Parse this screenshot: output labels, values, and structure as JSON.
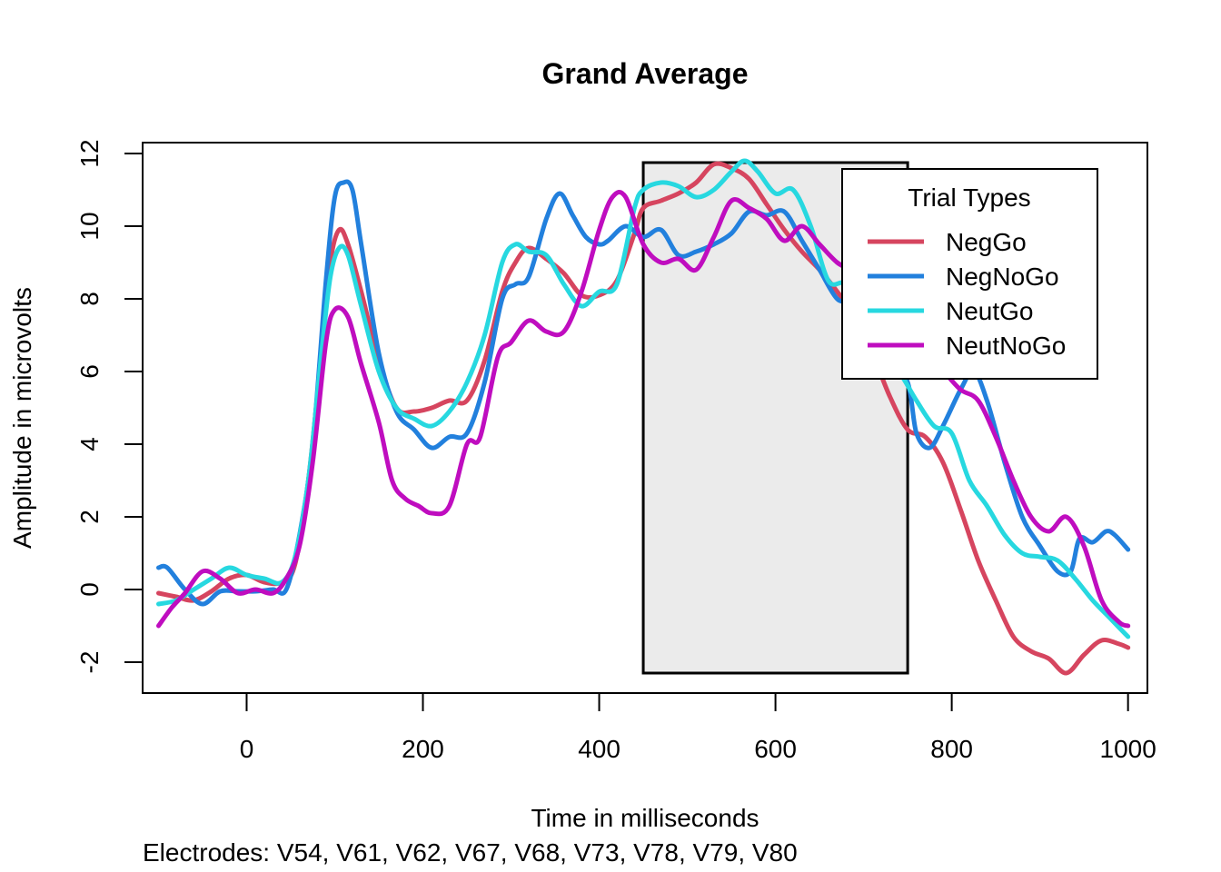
{
  "chart_data": {
    "type": "line",
    "title": "Grand Average",
    "xlabel": "Time in milliseconds",
    "ylabel": "Amplitude in microvolts",
    "caption": "Electrodes: V54, V61, V62, V67, V68, V73, V78, V79, V80",
    "xlim": [
      -100,
      1000
    ],
    "ylim": [
      -2.5,
      12
    ],
    "xticks": [
      0,
      200,
      400,
      600,
      800,
      1000
    ],
    "yticks": [
      -2,
      0,
      2,
      4,
      6,
      8,
      10,
      12
    ],
    "grid": false,
    "highlight_window": {
      "x0": 450,
      "x1": 750,
      "y0": -2.3,
      "y1": 11.75
    },
    "legend": {
      "title": "Trial Types",
      "placement": "top-right"
    },
    "series": [
      {
        "name": "NegGo",
        "color": "#D6455F",
        "points": [
          [
            -100,
            -0.1
          ],
          [
            -80,
            -0.2
          ],
          [
            -60,
            -0.3
          ],
          [
            -40,
            -0.05
          ],
          [
            -20,
            0.3
          ],
          [
            0,
            0.4
          ],
          [
            20,
            0.2
          ],
          [
            40,
            0.2
          ],
          [
            55,
            0.7
          ],
          [
            70,
            3.0
          ],
          [
            85,
            6.5
          ],
          [
            95,
            9.0
          ],
          [
            105,
            9.9
          ],
          [
            115,
            9.5
          ],
          [
            130,
            8.2
          ],
          [
            150,
            6.3
          ],
          [
            170,
            5.0
          ],
          [
            190,
            4.9
          ],
          [
            210,
            5.0
          ],
          [
            230,
            5.2
          ],
          [
            250,
            5.2
          ],
          [
            270,
            6.3
          ],
          [
            290,
            8.2
          ],
          [
            305,
            9.0
          ],
          [
            320,
            9.4
          ],
          [
            340,
            9.1
          ],
          [
            360,
            8.7
          ],
          [
            380,
            8.1
          ],
          [
            400,
            8.1
          ],
          [
            420,
            8.5
          ],
          [
            440,
            9.8
          ],
          [
            450,
            10.5
          ],
          [
            470,
            10.7
          ],
          [
            490,
            10.9
          ],
          [
            510,
            11.2
          ],
          [
            530,
            11.7
          ],
          [
            550,
            11.6
          ],
          [
            570,
            11.3
          ],
          [
            590,
            10.6
          ],
          [
            610,
            9.9
          ],
          [
            630,
            9.3
          ],
          [
            650,
            8.8
          ],
          [
            670,
            8.2
          ],
          [
            690,
            7.5
          ],
          [
            710,
            6.5
          ],
          [
            730,
            5.3
          ],
          [
            750,
            4.4
          ],
          [
            770,
            4.2
          ],
          [
            790,
            3.5
          ],
          [
            810,
            2.2
          ],
          [
            830,
            0.8
          ],
          [
            850,
            -0.3
          ],
          [
            870,
            -1.3
          ],
          [
            890,
            -1.7
          ],
          [
            910,
            -1.9
          ],
          [
            930,
            -2.3
          ],
          [
            950,
            -1.8
          ],
          [
            970,
            -1.4
          ],
          [
            990,
            -1.5
          ],
          [
            1000,
            -1.6
          ]
        ]
      },
      {
        "name": "NegNoGo",
        "color": "#2280DD",
        "points": [
          [
            -100,
            0.6
          ],
          [
            -90,
            0.6
          ],
          [
            -70,
            0.0
          ],
          [
            -50,
            -0.4
          ],
          [
            -30,
            -0.05
          ],
          [
            -10,
            -0.05
          ],
          [
            10,
            -0.05
          ],
          [
            30,
            0.0
          ],
          [
            45,
            0.0
          ],
          [
            60,
            1.5
          ],
          [
            75,
            4.0
          ],
          [
            90,
            8.5
          ],
          [
            100,
            10.8
          ],
          [
            110,
            11.2
          ],
          [
            120,
            11.0
          ],
          [
            130,
            9.5
          ],
          [
            150,
            6.5
          ],
          [
            170,
            4.9
          ],
          [
            190,
            4.4
          ],
          [
            210,
            3.9
          ],
          [
            230,
            4.2
          ],
          [
            250,
            4.3
          ],
          [
            270,
            5.7
          ],
          [
            290,
            8.0
          ],
          [
            305,
            8.4
          ],
          [
            320,
            8.6
          ],
          [
            340,
            10.2
          ],
          [
            355,
            10.9
          ],
          [
            370,
            10.3
          ],
          [
            385,
            9.7
          ],
          [
            400,
            9.5
          ],
          [
            410,
            9.6
          ],
          [
            430,
            10.0
          ],
          [
            450,
            9.7
          ],
          [
            470,
            9.9
          ],
          [
            490,
            9.2
          ],
          [
            510,
            9.3
          ],
          [
            530,
            9.5
          ],
          [
            550,
            9.8
          ],
          [
            570,
            10.4
          ],
          [
            590,
            10.3
          ],
          [
            610,
            10.4
          ],
          [
            630,
            9.6
          ],
          [
            650,
            8.8
          ],
          [
            670,
            8.0
          ],
          [
            690,
            7.8
          ],
          [
            710,
            6.5
          ],
          [
            730,
            6.3
          ],
          [
            750,
            5.7
          ],
          [
            760,
            4.3
          ],
          [
            775,
            3.9
          ],
          [
            790,
            4.5
          ],
          [
            810,
            5.5
          ],
          [
            825,
            6.0
          ],
          [
            840,
            5.2
          ],
          [
            860,
            3.5
          ],
          [
            880,
            2.0
          ],
          [
            900,
            1.2
          ],
          [
            920,
            0.5
          ],
          [
            935,
            0.5
          ],
          [
            945,
            1.4
          ],
          [
            960,
            1.3
          ],
          [
            975,
            1.6
          ],
          [
            985,
            1.5
          ],
          [
            1000,
            1.1
          ]
        ]
      },
      {
        "name": "NeutGo",
        "color": "#27D8E0",
        "points": [
          [
            -100,
            -0.4
          ],
          [
            -80,
            -0.3
          ],
          [
            -60,
            0.0
          ],
          [
            -40,
            0.3
          ],
          [
            -20,
            0.6
          ],
          [
            0,
            0.4
          ],
          [
            20,
            0.3
          ],
          [
            40,
            0.2
          ],
          [
            55,
            0.9
          ],
          [
            70,
            3.0
          ],
          [
            85,
            6.5
          ],
          [
            95,
            8.6
          ],
          [
            105,
            9.4
          ],
          [
            115,
            9.2
          ],
          [
            130,
            7.8
          ],
          [
            150,
            6.0
          ],
          [
            170,
            5.0
          ],
          [
            190,
            4.7
          ],
          [
            210,
            4.5
          ],
          [
            230,
            4.9
          ],
          [
            250,
            5.7
          ],
          [
            270,
            7.0
          ],
          [
            290,
            9.0
          ],
          [
            305,
            9.5
          ],
          [
            320,
            9.3
          ],
          [
            340,
            9.2
          ],
          [
            360,
            8.4
          ],
          [
            380,
            7.8
          ],
          [
            400,
            8.2
          ],
          [
            420,
            8.4
          ],
          [
            440,
            10.5
          ],
          [
            450,
            11.0
          ],
          [
            470,
            11.2
          ],
          [
            490,
            11.1
          ],
          [
            510,
            10.8
          ],
          [
            530,
            11.0
          ],
          [
            550,
            11.5
          ],
          [
            565,
            11.8
          ],
          [
            580,
            11.5
          ],
          [
            600,
            10.9
          ],
          [
            620,
            11.0
          ],
          [
            640,
            10.0
          ],
          [
            660,
            8.5
          ],
          [
            680,
            8.4
          ],
          [
            700,
            7.5
          ],
          [
            720,
            6.5
          ],
          [
            740,
            6.0
          ],
          [
            760,
            5.2
          ],
          [
            780,
            4.5
          ],
          [
            800,
            4.3
          ],
          [
            820,
            3.0
          ],
          [
            840,
            2.3
          ],
          [
            860,
            1.5
          ],
          [
            880,
            1.0
          ],
          [
            900,
            0.9
          ],
          [
            920,
            0.8
          ],
          [
            940,
            0.3
          ],
          [
            960,
            -0.3
          ],
          [
            980,
            -0.8
          ],
          [
            1000,
            -1.3
          ]
        ]
      },
      {
        "name": "NeutNoGo",
        "color": "#BF0DBF",
        "points": [
          [
            -100,
            -1.0
          ],
          [
            -85,
            -0.5
          ],
          [
            -70,
            -0.1
          ],
          [
            -50,
            0.5
          ],
          [
            -30,
            0.3
          ],
          [
            -10,
            -0.1
          ],
          [
            10,
            0.0
          ],
          [
            30,
            -0.1
          ],
          [
            45,
            0.3
          ],
          [
            60,
            1.2
          ],
          [
            75,
            3.5
          ],
          [
            90,
            6.8
          ],
          [
            100,
            7.7
          ],
          [
            115,
            7.5
          ],
          [
            130,
            6.2
          ],
          [
            150,
            4.6
          ],
          [
            165,
            3.0
          ],
          [
            180,
            2.5
          ],
          [
            195,
            2.3
          ],
          [
            210,
            2.1
          ],
          [
            230,
            2.3
          ],
          [
            250,
            4.0
          ],
          [
            265,
            4.2
          ],
          [
            285,
            6.4
          ],
          [
            300,
            6.8
          ],
          [
            320,
            7.4
          ],
          [
            340,
            7.1
          ],
          [
            360,
            7.1
          ],
          [
            380,
            8.2
          ],
          [
            400,
            9.9
          ],
          [
            415,
            10.8
          ],
          [
            430,
            10.8
          ],
          [
            450,
            9.5
          ],
          [
            470,
            9.0
          ],
          [
            490,
            9.1
          ],
          [
            510,
            8.8
          ],
          [
            530,
            9.7
          ],
          [
            550,
            10.7
          ],
          [
            570,
            10.5
          ],
          [
            590,
            10.2
          ],
          [
            610,
            9.6
          ],
          [
            630,
            10.0
          ],
          [
            650,
            9.5
          ],
          [
            670,
            9.0
          ],
          [
            690,
            8.7
          ],
          [
            710,
            8.0
          ],
          [
            730,
            7.0
          ],
          [
            750,
            6.5
          ],
          [
            770,
            6.3
          ],
          [
            790,
            6.0
          ],
          [
            810,
            5.5
          ],
          [
            830,
            5.2
          ],
          [
            850,
            4.2
          ],
          [
            870,
            3.0
          ],
          [
            890,
            2.0
          ],
          [
            910,
            1.6
          ],
          [
            930,
            2.0
          ],
          [
            950,
            1.2
          ],
          [
            970,
            -0.3
          ],
          [
            990,
            -0.9
          ],
          [
            1000,
            -1.0
          ]
        ]
      }
    ]
  }
}
